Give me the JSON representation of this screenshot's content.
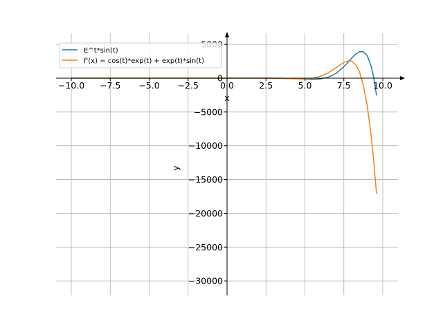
{
  "chart_data": {
    "type": "line",
    "title": "",
    "xlabel": "x",
    "ylabel": "y",
    "xlim": [
      -11,
      11
    ],
    "ylim": [
      -32000,
      6500
    ],
    "xticks": [
      -10,
      -7.5,
      -5,
      -2.5,
      0,
      2.5,
      5,
      7.5,
      10
    ],
    "xtick_labels": [
      "−10.0",
      "−7.5",
      "−5.0",
      "−2.5",
      "0.0",
      "2.5",
      "5.0",
      "7.5",
      "10.0"
    ],
    "yticks": [
      5000,
      0,
      -5000,
      -10000,
      -15000,
      -20000,
      -25000,
      -30000
    ],
    "ytick_labels": [
      "5000",
      "0",
      "−5000",
      "−10000",
      "−15000",
      "−20000",
      "−25000",
      "−30000"
    ],
    "grid": true,
    "legend_position": "top-left",
    "x": [
      -10,
      -5,
      0,
      2,
      3,
      4,
      4.5,
      5,
      5.5,
      6,
      6.5,
      7,
      7.5,
      7.8,
      8,
      8.25,
      8.5,
      8.75,
      9,
      9.25,
      9.4,
      9.6
    ],
    "series": [
      {
        "name": "E^t*sin(t)",
        "color": "#1f77b4",
        "values": [
          0,
          0.0065,
          0,
          6.72,
          2.83,
          -41.3,
          -88.0,
          -142.3,
          -172.6,
          -112.7,
          143.1,
          720.5,
          1695.9,
          2437,
          2949.3,
          3526.8,
          3924.5,
          3900.6,
          3339.3,
          1808,
          300,
          -2574
        ]
      },
      {
        "name": "f'(x) = cos(t)*exp(t) + exp(t)*sin(t)",
        "color": "#ff7f0e",
        "values": [
          0,
          0.0084,
          1,
          3.64,
          -17.05,
          -77.0,
          -107.0,
          -100.2,
          0.8,
          274.6,
          792.6,
          1547.2,
          2322.6,
          2568.7,
          2515.6,
          2039,
          965.8,
          -1060,
          -4043,
          -8438,
          -11785,
          -17113
        ]
      }
    ]
  }
}
